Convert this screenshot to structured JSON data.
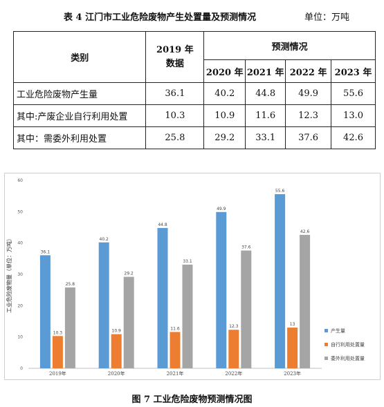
{
  "table": {
    "title": "表 4  江门市工业危险废物产生处置量及预测情况",
    "unit": "单位：万吨",
    "header": {
      "category": "类别",
      "base_year": "2019 年\n数据",
      "forecast": "预测情况",
      "years": [
        "2020 年",
        "2021 年",
        "2022 年",
        "2023 年"
      ]
    },
    "rows": [
      {
        "name": "工业危险废物产生量",
        "values": [
          "36.1",
          "40.2",
          "44.8",
          "49.9",
          "55.6"
        ]
      },
      {
        "name": "其中:产废企业自行利用处置",
        "values": [
          "10.3",
          "10.9",
          "11.6",
          "12.3",
          "13.0"
        ]
      },
      {
        "name": "其中：需委外利用处置",
        "values": [
          "25.8",
          "29.2",
          "33.1",
          "37.6",
          "42.6"
        ]
      }
    ]
  },
  "chart_data": {
    "type": "bar",
    "categories": [
      "2019年",
      "2020年",
      "2021年",
      "2022年",
      "2023年"
    ],
    "series": [
      {
        "name": "产生量",
        "color": "#5b9bd5",
        "values": [
          36.1,
          40.2,
          44.8,
          49.9,
          55.6
        ],
        "labels": [
          "36.1",
          "40.2",
          "44.8",
          "49.9",
          "55.6"
        ]
      },
      {
        "name": "自行利用处置量",
        "color": "#ed7d31",
        "values": [
          10.3,
          10.9,
          11.6,
          12.3,
          13
        ],
        "labels": [
          "10.3",
          "10.9",
          "11.6",
          "12.3",
          "13"
        ]
      },
      {
        "name": "委外利用处置量",
        "color": "#a5a5a5",
        "values": [
          25.8,
          29.2,
          33.1,
          37.6,
          42.6
        ],
        "labels": [
          "25.8",
          "29.2",
          "33.1",
          "37.6",
          "42.6"
        ]
      }
    ],
    "ylabel": "工业危险废物量（单位：万吨）",
    "ylim": [
      0,
      60
    ],
    "yticks": [
      "0",
      "10",
      "20",
      "30",
      "40",
      "50",
      "60"
    ],
    "legend": "right",
    "grid": false
  },
  "figure": {
    "caption": "图 7  工业危险废物预测情况图"
  }
}
